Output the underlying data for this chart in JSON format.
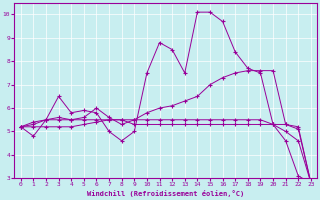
{
  "xlabel": "Windchill (Refroidissement éolien,°C)",
  "xlim": [
    -0.5,
    23.5
  ],
  "ylim": [
    3,
    10.5
  ],
  "xticks": [
    0,
    1,
    2,
    3,
    4,
    5,
    6,
    7,
    8,
    9,
    10,
    11,
    12,
    13,
    14,
    15,
    16,
    17,
    18,
    19,
    20,
    21,
    22,
    23
  ],
  "yticks": [
    3,
    4,
    5,
    6,
    7,
    8,
    9,
    10
  ],
  "bg_color": "#c8eef0",
  "line_color": "#990099",
  "grid_color": "#ffffff",
  "line1_x": [
    0,
    1,
    2,
    3,
    4,
    5,
    6,
    7,
    8,
    9,
    10,
    11,
    12,
    13,
    14,
    15,
    16,
    17,
    18,
    19,
    20,
    21,
    22,
    23
  ],
  "line1_y": [
    5.2,
    4.8,
    5.5,
    6.5,
    5.8,
    5.9,
    5.8,
    5.0,
    4.6,
    5.0,
    7.5,
    8.8,
    8.5,
    7.5,
    10.1,
    10.1,
    9.7,
    8.4,
    7.7,
    7.5,
    5.3,
    4.6,
    3.1,
    2.8
  ],
  "line2_x": [
    0,
    1,
    2,
    3,
    4,
    5,
    6,
    7,
    8,
    9,
    10,
    11,
    12,
    13,
    14,
    15,
    16,
    17,
    18,
    19,
    20,
    21,
    22,
    23
  ],
  "line2_y": [
    5.2,
    5.3,
    5.5,
    5.6,
    5.5,
    5.6,
    6.0,
    5.6,
    5.3,
    5.5,
    5.8,
    6.0,
    6.1,
    6.3,
    6.5,
    7.0,
    7.3,
    7.5,
    7.6,
    7.6,
    7.6,
    5.3,
    5.2,
    2.8
  ],
  "line3_x": [
    0,
    1,
    2,
    3,
    4,
    5,
    6,
    7,
    8,
    9,
    10,
    11,
    12,
    13,
    14,
    15,
    16,
    17,
    18,
    19,
    20,
    21,
    22,
    23
  ],
  "line3_y": [
    5.2,
    5.4,
    5.5,
    5.5,
    5.5,
    5.5,
    5.5,
    5.5,
    5.5,
    5.3,
    5.3,
    5.3,
    5.3,
    5.3,
    5.3,
    5.3,
    5.3,
    5.3,
    5.3,
    5.3,
    5.3,
    5.0,
    4.6,
    2.8
  ],
  "line4_x": [
    0,
    1,
    2,
    3,
    4,
    5,
    6,
    7,
    8,
    9,
    10,
    11,
    12,
    13,
    14,
    15,
    16,
    17,
    18,
    19,
    20,
    21,
    22,
    23
  ],
  "line4_y": [
    5.2,
    5.2,
    5.2,
    5.2,
    5.2,
    5.3,
    5.4,
    5.5,
    5.5,
    5.5,
    5.5,
    5.5,
    5.5,
    5.5,
    5.5,
    5.5,
    5.5,
    5.5,
    5.5,
    5.5,
    5.3,
    5.3,
    5.1,
    2.8
  ]
}
